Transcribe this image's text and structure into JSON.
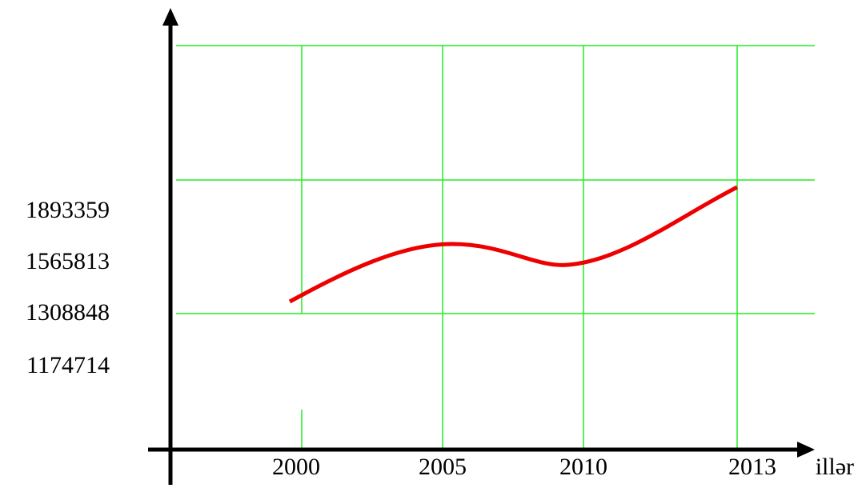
{
  "y_labels": [
    "1893359",
    "1565813",
    "1308848",
    "1174714"
  ],
  "x_labels": [
    "2000",
    "2005",
    "2010",
    "2013"
  ],
  "x_axis_label": "illər"
}
